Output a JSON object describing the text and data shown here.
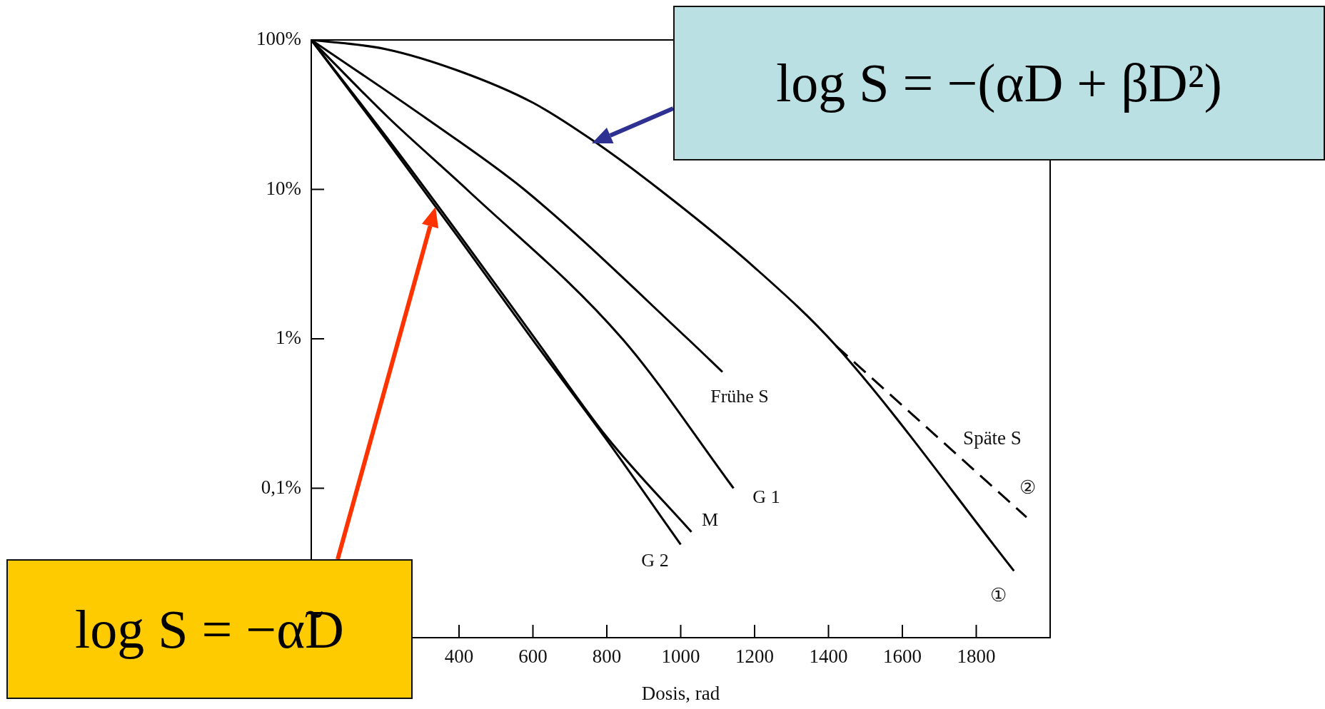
{
  "chart_data": {
    "type": "line",
    "xlabel": "Dosis, rad",
    "xlim": [
      0,
      2000
    ],
    "xticks": [
      400,
      600,
      800,
      1000,
      1200,
      1400,
      1600,
      1800
    ],
    "ylim": [
      0.01,
      100
    ],
    "yticks": [
      {
        "value": 100,
        "label": "100%"
      },
      {
        "value": 10,
        "label": "10%"
      },
      {
        "value": 1,
        "label": "1%"
      },
      {
        "value": 0.1,
        "label": "0,1%"
      }
    ],
    "log": "y",
    "grid": false,
    "legend": false,
    "marker": "none",
    "series": [
      {
        "name": "G 2",
        "color": "#000000",
        "x": [
          0,
          200,
          400,
          600,
          800,
          1000
        ],
        "values": [
          100,
          22,
          4.7,
          0.98,
          0.21,
          0.042
        ]
      },
      {
        "name": "M",
        "color": "#000000",
        "x": [
          0,
          200,
          400,
          600,
          800,
          1029
        ],
        "values": [
          100,
          23,
          5,
          1.05,
          0.22,
          0.051
        ]
      },
      {
        "name": "G 1",
        "color": "#000000",
        "x": [
          0,
          210,
          421,
          842,
          1143
        ],
        "values": [
          100,
          30,
          10,
          1,
          0.1
        ]
      },
      {
        "name": "Frühe S",
        "color": "#000000",
        "x": [
          0,
          310,
          576,
          1019,
          1113
        ],
        "values": [
          100,
          30,
          10,
          1,
          0.6
        ]
      },
      {
        "name": "①",
        "color": "#000000",
        "x": [
          0,
          200,
          400,
          600,
          759,
          942,
          1200,
          1420,
          1902
        ],
        "values": [
          100,
          87,
          62,
          38,
          21.5,
          10,
          3,
          0.9,
          0.028
        ]
      },
      {
        "name": "②",
        "color": "#000000",
        "line_style": "dashed",
        "x": [
          1420,
          1936
        ],
        "values": [
          0.9,
          0.064
        ]
      }
    ],
    "annotations": [
      "Späte S",
      "log S = −(αD + βD²)",
      "log S = −α̃D"
    ]
  }
}
